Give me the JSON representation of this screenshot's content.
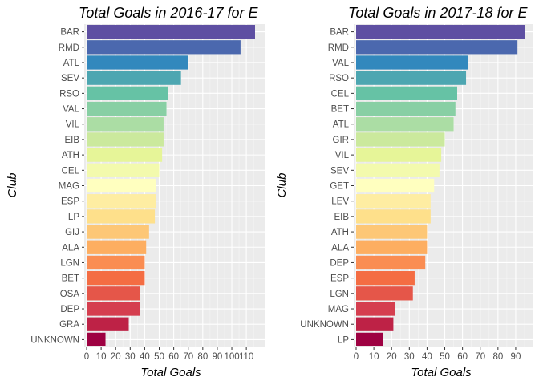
{
  "chart_data": [
    {
      "type": "bar",
      "orientation": "horizontal",
      "title": "Total Goals in 2016-17 for E",
      "xlabel": "Total Goals",
      "ylabel": "Club",
      "xlim": [
        0,
        116
      ],
      "xticks": [
        0,
        10,
        20,
        30,
        40,
        50,
        60,
        70,
        80,
        90,
        100,
        110
      ],
      "grid": true,
      "categories": [
        "BAR",
        "RMD",
        "ATL",
        "SEV",
        "RSO",
        "VAL",
        "VIL",
        "EIB",
        "ATH",
        "CEL",
        "MAG",
        "ESP",
        "LP",
        "GIJ",
        "ALA",
        "LGN",
        "BET",
        "OSA",
        "DEP",
        "GRA",
        "UNKNOWN"
      ],
      "values": [
        116,
        106,
        70,
        65,
        56,
        55,
        53,
        53,
        52,
        50,
        48,
        48,
        47,
        43,
        41,
        40,
        40,
        37,
        37,
        29,
        13
      ],
      "colors": [
        "#5E4FA2",
        "#4B68AE",
        "#3288BD",
        "#4DA6B1",
        "#66C2A5",
        "#88CFA4",
        "#ABDDA4",
        "#CBE99D",
        "#E6F598",
        "#F3FAAD",
        "#FFFFBF",
        "#FEEDA2",
        "#FEE08B",
        "#FDC776",
        "#FDAE61",
        "#FA8D52",
        "#F46D43",
        "#E55649",
        "#D53E4F",
        "#BE2246",
        "#9E0142"
      ]
    },
    {
      "type": "bar",
      "orientation": "horizontal",
      "title": "Total Goals in 2017-18 for E",
      "xlabel": "Total Goals",
      "ylabel": "Club",
      "xlim": [
        0,
        95
      ],
      "xticks": [
        0,
        10,
        20,
        30,
        40,
        50,
        60,
        70,
        80,
        90
      ],
      "grid": true,
      "categories": [
        "BAR",
        "RMD",
        "VAL",
        "RSO",
        "CEL",
        "BET",
        "ATL",
        "GIR",
        "VIL",
        "SEV",
        "GET",
        "LEV",
        "EIB",
        "ATH",
        "ALA",
        "DEP",
        "ESP",
        "LGN",
        "MAG",
        "UNKNOWN",
        "LP"
      ],
      "values": [
        95,
        91,
        63,
        62,
        57,
        56,
        55,
        50,
        48,
        47,
        44,
        42,
        42,
        40,
        40,
        39,
        33,
        32,
        22,
        21,
        15
      ],
      "colors": [
        "#5E4FA2",
        "#4B68AE",
        "#3288BD",
        "#4DA6B1",
        "#66C2A5",
        "#88CFA4",
        "#ABDDA4",
        "#CBE99D",
        "#E6F598",
        "#F3FAAD",
        "#FFFFBF",
        "#FEEDA2",
        "#FEE08B",
        "#FDC776",
        "#FDAE61",
        "#FA8D52",
        "#F46D43",
        "#E55649",
        "#D53E4F",
        "#BE2246",
        "#9E0142"
      ]
    }
  ],
  "style": {
    "panel_bg": "#EBEBEB",
    "grid_major": "#FFFFFF",
    "grid_minor": "#F5F5F5",
    "tick_text": "#4D4D4D",
    "tick_mark": "#333333"
  }
}
